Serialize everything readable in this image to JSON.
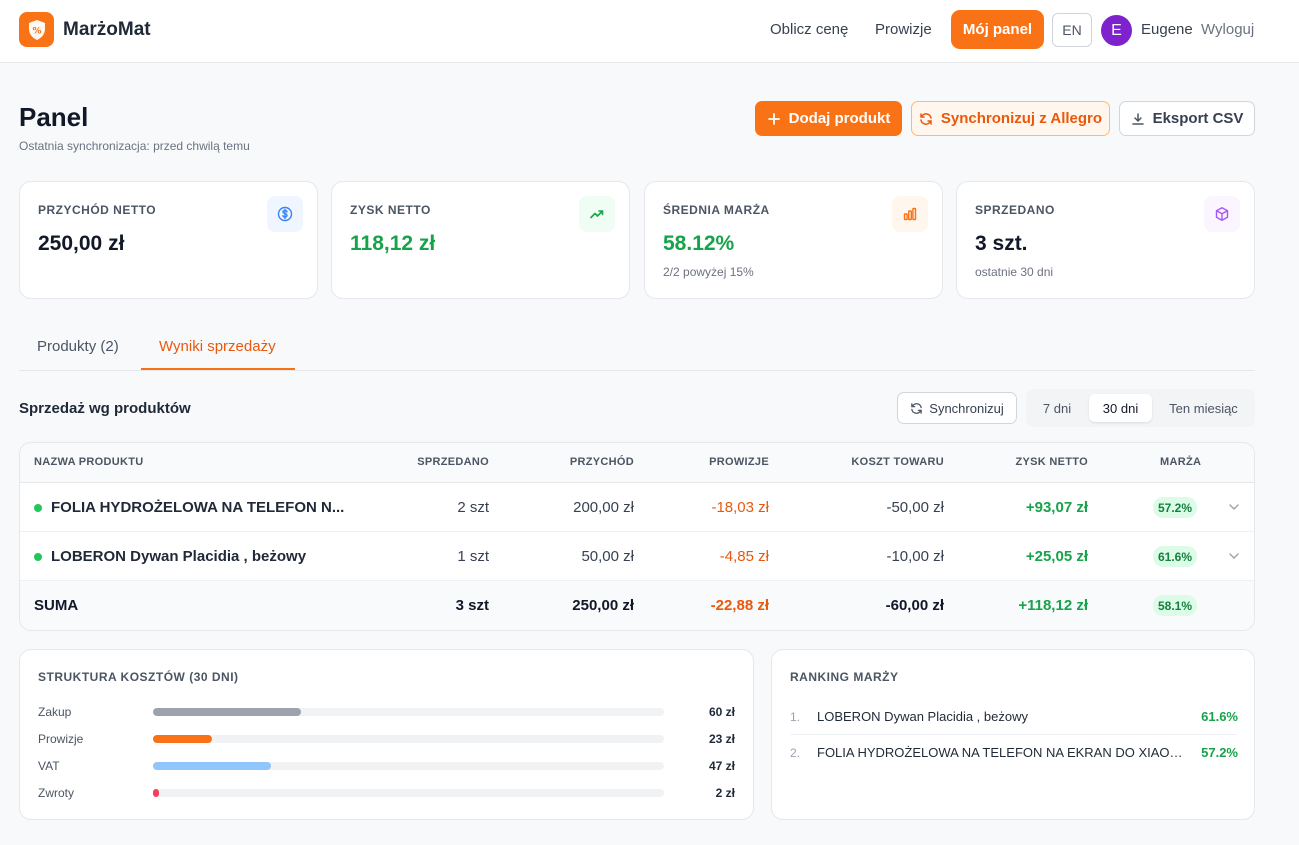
{
  "app": {
    "brand": "MarżoMat"
  },
  "nav": {
    "calc": "Oblicz cenę",
    "fees": "Prowizje",
    "panel": "Mój panel",
    "lang": "EN",
    "avatar_initial": "E",
    "user": "Eugene",
    "logout": "Wyloguj"
  },
  "page": {
    "title": "Panel",
    "subtitle": "Ostatnia synchronizacja: przed chwilą temu",
    "add_product": "Dodaj produkt",
    "sync_allegro": "Synchronizuj z Allegro",
    "export_csv": "Eksport CSV"
  },
  "kpis": [
    {
      "label": "PRZYCHÓD NETTO",
      "value": "250,00 zł",
      "note": "",
      "icon": "dollar-icon",
      "color": "#3b82f6"
    },
    {
      "label": "ZYSK NETTO",
      "value": "118,12 zł",
      "note": "",
      "icon": "trending-up-icon",
      "color": "#16a34a"
    },
    {
      "label": "ŚREDNIA MARŻA",
      "value": "58.12%",
      "note": "2/2 powyżej 15%",
      "icon": "bar-chart-icon",
      "color": "#f97316"
    },
    {
      "label": "SPRZEDANO",
      "value": "3 szt.",
      "note": "ostatnie 30 dni",
      "icon": "box-icon",
      "color": "#a855f7"
    }
  ],
  "tabs": {
    "products": "Produkty (2)",
    "sales": "Wyniki sprzedaży"
  },
  "sales": {
    "title": "Sprzedaż wg produktów",
    "sync": "Synchronizuj",
    "ranges": [
      "7 dni",
      "30 dni",
      "Ten miesiąc"
    ],
    "selected_range": "30 dni"
  },
  "table": {
    "headers": {
      "name": "NAZWA PRODUKTU",
      "sold": "SPRZEDANO",
      "revenue": "PRZYCHÓD",
      "fees": "PROWIZJE",
      "cost": "KOSZT TOWARU",
      "profit": "ZYSK NETTO",
      "margin": "MARŻA"
    },
    "rows": [
      {
        "name": "FOLIA HYDROŻELOWA NA TELEFON N...",
        "sold": "2 szt",
        "revenue": "200,00 zł",
        "fees": "-18,03 zł",
        "cost": "-50,00 zł",
        "profit": "+93,07 zł",
        "margin": "57.2%"
      },
      {
        "name": "LOBERON Dywan Placidia , beżowy",
        "sold": "1 szt",
        "revenue": "50,00 zł",
        "fees": "-4,85 zł",
        "cost": "-10,00 zł",
        "profit": "+25,05 zł",
        "margin": "61.6%"
      }
    ],
    "total": {
      "name": "SUMA",
      "sold": "3 szt",
      "revenue": "250,00 zł",
      "fees": "-22,88 zł",
      "cost": "-60,00 zł",
      "profit": "+118,12 zł",
      "margin": "58.1%"
    }
  },
  "cost_structure": {
    "title": "STRUKTURA KOSZTÓW (30 DNI)",
    "items": [
      {
        "label": "Zakup",
        "value": "60 zł",
        "fraction": 0.29,
        "color": "#9ca3af"
      },
      {
        "label": "Prowizje",
        "value": "23 zł",
        "fraction": 0.115,
        "color": "#f97316"
      },
      {
        "label": "VAT",
        "value": "47 zł",
        "fraction": 0.23,
        "color": "#93c5fd"
      },
      {
        "label": "Zwroty",
        "value": "2 zł",
        "fraction": 0.012,
        "color": "#f43f5e"
      }
    ]
  },
  "ranking": {
    "title": "RANKING MARŻY",
    "items": [
      {
        "num": "1.",
        "name": "LOBERON Dywan Placidia , beżowy",
        "value": "61.6%"
      },
      {
        "num": "2.",
        "name": "FOLIA HYDROŻELOWA NA TELEFON NA EKRAN DO XIAOMI ...",
        "value": "57.2%"
      }
    ]
  }
}
